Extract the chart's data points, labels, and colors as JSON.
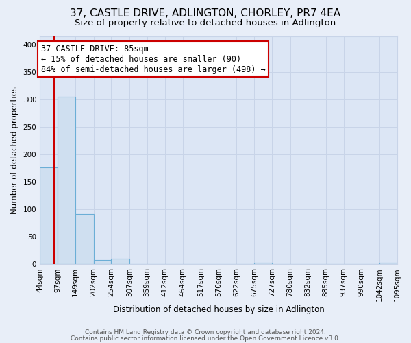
{
  "title": "37, CASTLE DRIVE, ADLINGTON, CHORLEY, PR7 4EA",
  "subtitle": "Size of property relative to detached houses in Adlington",
  "xlabel": "Distribution of detached houses by size in Adlington",
  "ylabel": "Number of detached properties",
  "bin_edges": [
    44,
    97,
    149,
    202,
    254,
    307,
    359,
    412,
    464,
    517,
    570,
    622,
    675,
    727,
    780,
    832,
    885,
    937,
    990,
    1042,
    1095
  ],
  "bin_labels": [
    "44sqm",
    "97sqm",
    "149sqm",
    "202sqm",
    "254sqm",
    "307sqm",
    "359sqm",
    "412sqm",
    "464sqm",
    "517sqm",
    "570sqm",
    "622sqm",
    "675sqm",
    "727sqm",
    "780sqm",
    "832sqm",
    "885sqm",
    "937sqm",
    "990sqm",
    "1042sqm",
    "1095sqm"
  ],
  "bar_heights": [
    176,
    305,
    92,
    8,
    10,
    0,
    0,
    0,
    0,
    0,
    0,
    0,
    3,
    0,
    0,
    0,
    0,
    0,
    0,
    3
  ],
  "bar_color": "#cfdff0",
  "bar_edge_color": "#6baed6",
  "property_size": 85,
  "red_line_color": "#cc0000",
  "annotation_text_line1": "37 CASTLE DRIVE: 85sqm",
  "annotation_text_line2": "← 15% of detached houses are smaller (90)",
  "annotation_text_line3": "84% of semi-detached houses are larger (498) →",
  "annotation_box_color": "#ffffff",
  "annotation_box_edge_color": "#cc0000",
  "ylim": [
    0,
    415
  ],
  "yticks": [
    0,
    50,
    100,
    150,
    200,
    250,
    300,
    350,
    400
  ],
  "grid_color": "#c8d4e8",
  "background_color": "#e8eef8",
  "plot_bg_color": "#dce6f5",
  "footer_line1": "Contains HM Land Registry data © Crown copyright and database right 2024.",
  "footer_line2": "Contains public sector information licensed under the Open Government Licence v3.0.",
  "title_fontsize": 11,
  "subtitle_fontsize": 9.5,
  "axis_label_fontsize": 8.5,
  "tick_fontsize": 7.5,
  "annotation_fontsize": 8.5,
  "footer_fontsize": 6.5
}
